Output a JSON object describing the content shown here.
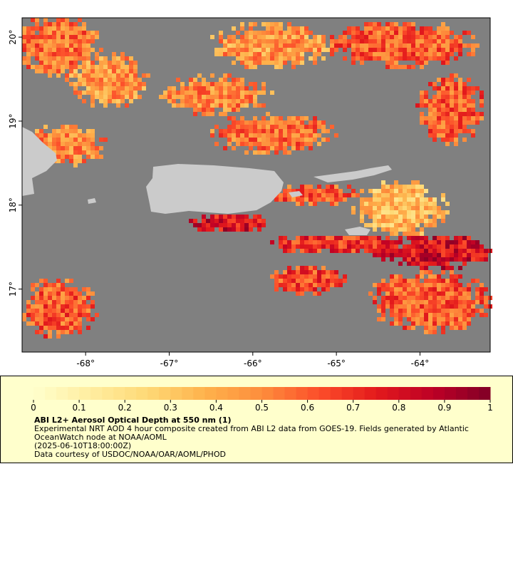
{
  "map": {
    "lonlim": [
      -68.76,
      -63.16
    ],
    "latlim": [
      16.25,
      20.23
    ],
    "lon_ticks": [
      {
        "value": -68,
        "label": "-68°"
      },
      {
        "value": -67,
        "label": "-67°"
      },
      {
        "value": -66,
        "label": "-66°"
      },
      {
        "value": -65,
        "label": "-65°"
      },
      {
        "value": -64,
        "label": "-64°"
      }
    ],
    "lat_ticks": [
      {
        "value": 20,
        "label": "20°"
      },
      {
        "value": 19,
        "label": "19°"
      },
      {
        "value": 18,
        "label": "18°"
      },
      {
        "value": 17,
        "label": "17°"
      }
    ]
  },
  "colorbar": {
    "range": [
      0,
      1
    ],
    "ticks": [
      0,
      0.1,
      0.2,
      0.3,
      0.4,
      0.5,
      0.6,
      0.7,
      0.8,
      0.9,
      1
    ]
  },
  "caption": {
    "title": "ABI L2+ Aerosol Optical Depth at 550 nm (1)",
    "lines": [
      "Experimental NRT AOD 4 hour composite created from ABI L2 data from GOES-19. Fields generated by Atlantic",
      "OceanWatch node at NOAA/AOML",
      "(2025-06-10T18:00:00Z)",
      "Data courtesy of USDOC/NOAA/OAR/AOML/PHOD"
    ]
  }
}
